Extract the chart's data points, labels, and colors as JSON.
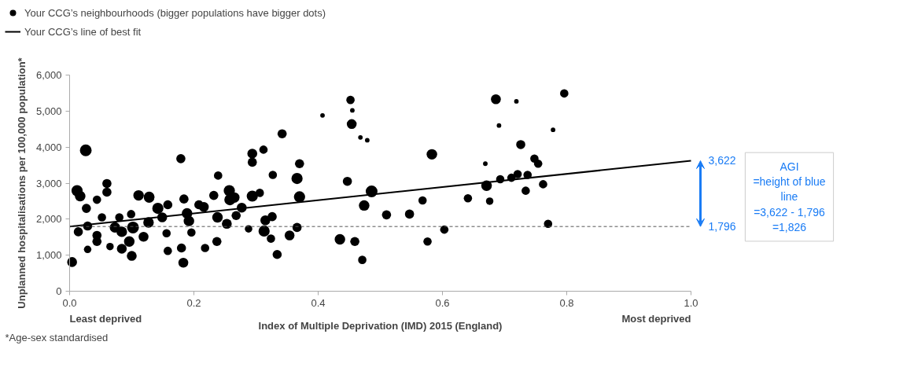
{
  "chart_data": {
    "type": "bubble",
    "xlabel": "Index of Multiple Deprivation (IMD) 2015 (England)",
    "ylabel": "Unplanned hospitalisations per 100,000 population*",
    "xlim": [
      0,
      1
    ],
    "ylim": [
      0,
      6000
    ],
    "xticks": [
      {
        "value": 0,
        "label": "0.0"
      },
      {
        "value": 0.2,
        "label": "0.2"
      },
      {
        "value": 0.4,
        "label": "0.4"
      },
      {
        "value": 0.6,
        "label": "0.6"
      },
      {
        "value": 0.8,
        "label": "0.8"
      },
      {
        "value": 1,
        "label": "1.0"
      }
    ],
    "yticks": [
      {
        "value": 0,
        "label": "0"
      },
      {
        "value": 1000,
        "label": "1,000"
      },
      {
        "value": 2000,
        "label": "2,000"
      },
      {
        "value": 3000,
        "label": "3,000"
      },
      {
        "value": 4000,
        "label": "4,000"
      },
      {
        "value": 5000,
        "label": "5,000"
      },
      {
        "value": 6000,
        "label": "6,000"
      }
    ],
    "grid": false,
    "legend": "top left",
    "series": [
      {
        "name": "Your CCG’s neighbourhoods (bigger populations have bigger dots)",
        "color": "#000000",
        "marker": "circle",
        "x": [
          0.004,
          0.026,
          0.012,
          0.017,
          0.027,
          0.029,
          0.014,
          0.044,
          0.044,
          0.029,
          0.052,
          0.065,
          0.06,
          0.06,
          0.044,
          0.08,
          0.073,
          0.084,
          0.096,
          0.084,
          0.102,
          0.099,
          0.119,
          0.127,
          0.128,
          0.142,
          0.149,
          0.158,
          0.156,
          0.158,
          0.18,
          0.184,
          0.189,
          0.192,
          0.196,
          0.208,
          0.216,
          0.218,
          0.232,
          0.238,
          0.237,
          0.239,
          0.253,
          0.265,
          0.277,
          0.288,
          0.294,
          0.306,
          0.315,
          0.326,
          0.327,
          0.334,
          0.324,
          0.312,
          0.294,
          0.294,
          0.179,
          0.183,
          0.1,
          0.111,
          0.128,
          0.257,
          0.258,
          0.268,
          0.313,
          0.342,
          0.37,
          0.366,
          0.37,
          0.354,
          0.366,
          0.447,
          0.452,
          0.454,
          0.435,
          0.459,
          0.471,
          0.486,
          0.474,
          0.51,
          0.547,
          0.568,
          0.583,
          0.576,
          0.603,
          0.641,
          0.671,
          0.686,
          0.796,
          0.726,
          0.748,
          0.754,
          0.693,
          0.711,
          0.721,
          0.737,
          0.762,
          0.734,
          0.676,
          0.77,
          0.719,
          0.691,
          0.778,
          0.407,
          0.455,
          0.468,
          0.479,
          0.669
        ],
        "values": [
          810,
          3910,
          2790,
          2640,
          2300,
          1810,
          1650,
          1550,
          1380,
          1160,
          2050,
          1240,
          2750,
          2990,
          2540,
          2050,
          1770,
          1650,
          1380,
          1180,
          1770,
          2140,
          1510,
          1910,
          2600,
          2300,
          2050,
          2400,
          1610,
          1120,
          1200,
          2560,
          2160,
          1950,
          1630,
          2400,
          2340,
          1200,
          2660,
          2050,
          1380,
          3210,
          1870,
          2600,
          2320,
          1730,
          2640,
          2730,
          1970,
          2070,
          3230,
          1020,
          1460,
          3930,
          3820,
          3580,
          3680,
          790,
          980,
          2660,
          2620,
          2790,
          2540,
          2100,
          1670,
          4370,
          3540,
          3130,
          2620,
          1550,
          1770,
          3050,
          5310,
          4640,
          1440,
          1380,
          870,
          2770,
          2380,
          2120,
          2140,
          2520,
          3800,
          1380,
          1710,
          2580,
          2930,
          5330,
          5490,
          4070,
          3680,
          3540,
          3110,
          3150,
          3250,
          3230,
          2970,
          2790,
          2500,
          1870,
          5270,
          4600,
          4480,
          4880,
          5020,
          4270,
          4190,
          3540
        ],
        "sizes": [
          0.7,
          1,
          0.9,
          0.8,
          0.6,
          0.6,
          0.6,
          0.6,
          0.6,
          0.4,
          0.5,
          0.4,
          0.6,
          0.6,
          0.5,
          0.5,
          0.8,
          0.8,
          0.8,
          0.7,
          1,
          0.5,
          0.7,
          0.8,
          0.8,
          0.9,
          0.7,
          0.6,
          0.5,
          0.5,
          0.6,
          0.6,
          0.8,
          0.8,
          0.5,
          0.6,
          0.7,
          0.5,
          0.6,
          0.8,
          0.6,
          0.5,
          0.7,
          0.8,
          0.7,
          0.4,
          0.9,
          0.5,
          0.7,
          0.6,
          0.5,
          0.6,
          0.5,
          0.5,
          0.7,
          0.6,
          0.6,
          0.7,
          0.7,
          0.8,
          0.8,
          0.9,
          0.9,
          0.6,
          0.9,
          0.6,
          0.6,
          0.9,
          0.9,
          0.7,
          0.6,
          0.6,
          0.5,
          0.7,
          0.8,
          0.6,
          0.5,
          1,
          0.8,
          0.6,
          0.6,
          0.5,
          0.8,
          0.5,
          0.5,
          0.5,
          0.8,
          0.7,
          0.5,
          0.6,
          0.5,
          0.5,
          0.5,
          0.5,
          0.5,
          0.5,
          0.5,
          0.5,
          0.4,
          0.5,
          0.15,
          0.15,
          0.15,
          0.15,
          0.15,
          0.15,
          0.15,
          0.15
        ]
      },
      {
        "name": "Your CCG’s line of best fit",
        "type": "line",
        "color": "#000000",
        "line_style": "solid",
        "x": [
          0,
          1
        ],
        "values": [
          1796,
          3622
        ]
      }
    ],
    "ref_lines": [
      {
        "axis": "y",
        "value": 1796,
        "color": "#555555",
        "line_style": "dashed"
      }
    ],
    "annotations": [
      {
        "text": "3,622",
        "x": 1,
        "y": 3622
      },
      {
        "text": "1,796",
        "x": 1,
        "y": 1796
      },
      "AGI\n=height of blue\nline\n=3,622 - 1,796\n=1,826",
      "Least deprived",
      "Most deprived",
      "*Age-sex standardised"
    ]
  }
}
